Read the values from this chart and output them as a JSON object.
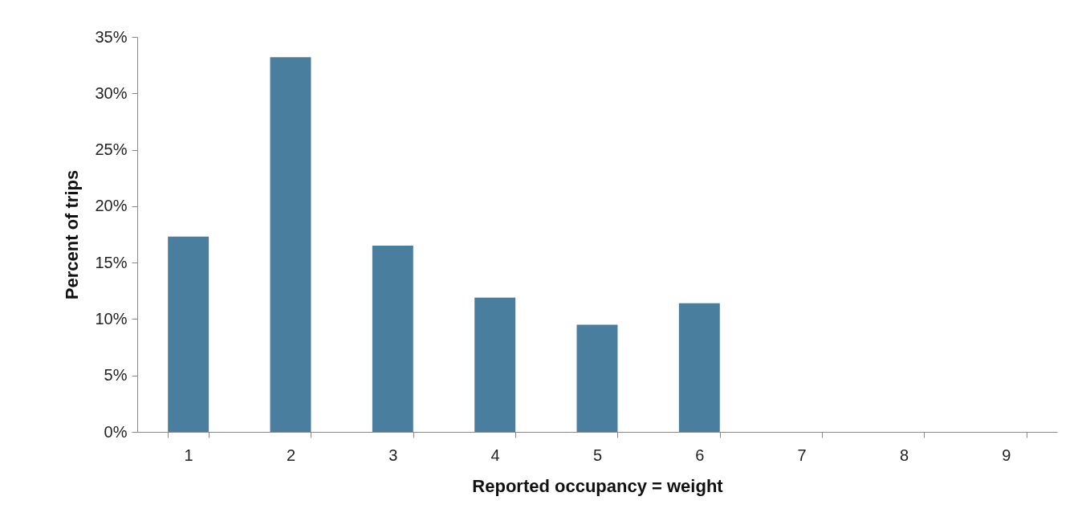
{
  "chart_data": {
    "type": "bar",
    "xlabel": "Reported occupancy = weight",
    "ylabel": "Percent of trips",
    "categories": [
      "1",
      "2",
      "3",
      "4",
      "5",
      "6",
      "7",
      "8",
      "9"
    ],
    "values": [
      17.3,
      33.2,
      16.5,
      11.9,
      9.5,
      11.4,
      0,
      0,
      0
    ],
    "color": "#4a7e9e",
    "ylim": [
      0,
      35
    ],
    "yticks": [
      {
        "value": 0,
        "label": "0%"
      },
      {
        "value": 5,
        "label": "5%"
      },
      {
        "value": 10,
        "label": "10%"
      },
      {
        "value": 15,
        "label": "15%"
      },
      {
        "value": 20,
        "label": "20%"
      },
      {
        "value": 25,
        "label": "25%"
      },
      {
        "value": 30,
        "label": "30%"
      },
      {
        "value": 35,
        "label": "35%"
      }
    ],
    "grid": false
  }
}
